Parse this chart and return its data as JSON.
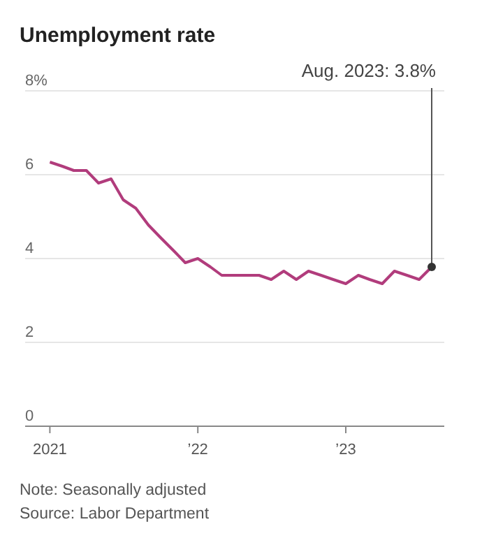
{
  "chart_data": {
    "type": "line",
    "title": "Unemployment rate",
    "x": [
      "2021-01",
      "2021-02",
      "2021-03",
      "2021-04",
      "2021-05",
      "2021-06",
      "2021-07",
      "2021-08",
      "2021-09",
      "2021-10",
      "2021-11",
      "2021-12",
      "2022-01",
      "2022-02",
      "2022-03",
      "2022-04",
      "2022-05",
      "2022-06",
      "2022-07",
      "2022-08",
      "2022-09",
      "2022-10",
      "2022-11",
      "2022-12",
      "2023-01",
      "2023-02",
      "2023-03",
      "2023-04",
      "2023-05",
      "2023-06",
      "2023-07",
      "2023-08"
    ],
    "series": [
      {
        "color": "#b13c7c",
        "values": [
          6.3,
          6.2,
          6.1,
          6.1,
          5.8,
          5.9,
          5.4,
          5.2,
          4.8,
          4.5,
          4.2,
          3.9,
          4.0,
          3.8,
          3.6,
          3.6,
          3.6,
          3.6,
          3.5,
          3.7,
          3.5,
          3.7,
          3.6,
          3.5,
          3.4,
          3.6,
          3.5,
          3.4,
          3.7,
          3.6,
          3.5,
          3.8
        ]
      }
    ],
    "xlim": [
      "2020-11",
      "2023-09"
    ],
    "xticks": [
      {
        "value": "2021-01",
        "label": "2021"
      },
      {
        "value": "2022-01",
        "label": "’22"
      },
      {
        "value": "2023-01",
        "label": "’23"
      }
    ],
    "ylim": [
      0,
      8
    ],
    "yticks": [
      0,
      2,
      4,
      6,
      {
        "value": 8,
        "label": "8%"
      }
    ],
    "grid": "y",
    "marker": "none",
    "line_style": "solid",
    "annotations": [
      {
        "text": "Aug. 2023: 3.8%",
        "x": "2023-08",
        "y": 3.8
      },
      "Note: Seasonally adjusted",
      "Source: Labor Department"
    ]
  }
}
